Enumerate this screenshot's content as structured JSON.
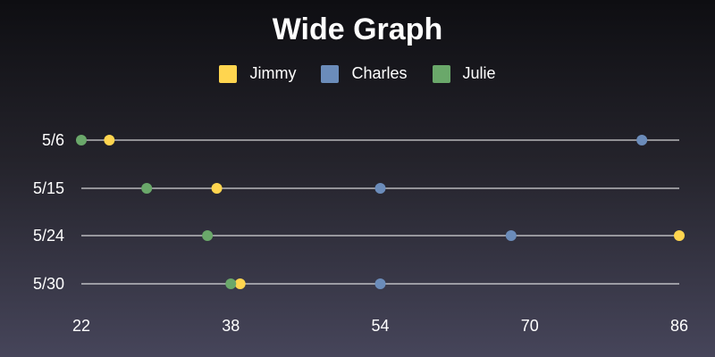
{
  "chart_data": {
    "type": "scatter",
    "title": "Wide Graph",
    "categories": [
      "5/6",
      "5/15",
      "5/24",
      "5/30"
    ],
    "xlim": [
      22,
      86
    ],
    "xticks": [
      22,
      38,
      54,
      70,
      86
    ],
    "legend_position": "top-center",
    "series": [
      {
        "name": "Jimmy",
        "color": "#ffd54f",
        "values": [
          25,
          36.5,
          86,
          39
        ]
      },
      {
        "name": "Charles",
        "color": "#6b8cba",
        "values": [
          82,
          54,
          68,
          54
        ]
      },
      {
        "name": "Julie",
        "color": "#6aa86a",
        "values": [
          22,
          29,
          35.5,
          38
        ]
      }
    ],
    "line_color": "#ffffff",
    "grid": false
  }
}
